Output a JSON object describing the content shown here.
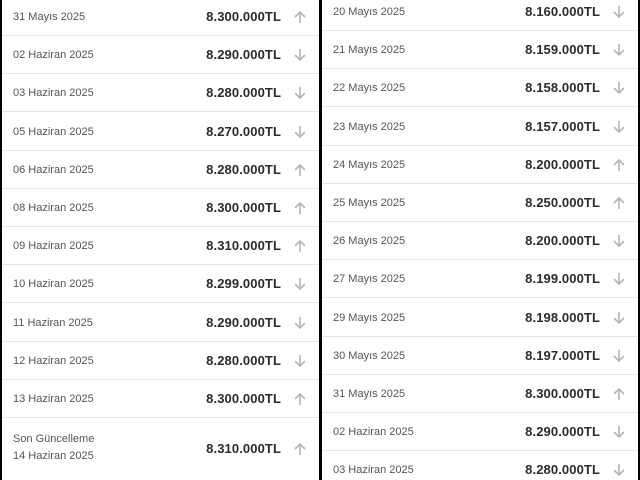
{
  "left": {
    "rows": [
      {
        "date": "31 Mayıs 2025",
        "price": "8.300.000TL",
        "dir": "up"
      },
      {
        "date": "02 Haziran 2025",
        "price": "8.290.000TL",
        "dir": "down"
      },
      {
        "date": "03 Haziran 2025",
        "price": "8.280.000TL",
        "dir": "down"
      },
      {
        "date": "05 Haziran 2025",
        "price": "8.270.000TL",
        "dir": "down"
      },
      {
        "date": "06 Haziran 2025",
        "price": "8.280.000TL",
        "dir": "up"
      },
      {
        "date": "08 Haziran 2025",
        "price": "8.300.000TL",
        "dir": "up"
      },
      {
        "date": "09 Haziran 2025",
        "price": "8.310.000TL",
        "dir": "up"
      },
      {
        "date": "10 Haziran 2025",
        "price": "8.299.000TL",
        "dir": "down"
      },
      {
        "date": "11 Haziran 2025",
        "price": "8.290.000TL",
        "dir": "down"
      },
      {
        "date": "12 Haziran 2025",
        "price": "8.280.000TL",
        "dir": "down"
      },
      {
        "date": "13 Haziran 2025",
        "price": "8.300.000TL",
        "dir": "up"
      }
    ],
    "last_update": {
      "label": "Son Güncelleme",
      "date": "14 Haziran 2025",
      "price": "8.310.000TL",
      "dir": "up"
    }
  },
  "right": {
    "rows": [
      {
        "date": "20 Mayıs 2025",
        "price": "8.160.000TL",
        "dir": "down"
      },
      {
        "date": "21 Mayıs 2025",
        "price": "8.159.000TL",
        "dir": "down"
      },
      {
        "date": "22 Mayıs 2025",
        "price": "8.158.000TL",
        "dir": "down"
      },
      {
        "date": "23 Mayıs 2025",
        "price": "8.157.000TL",
        "dir": "down"
      },
      {
        "date": "24 Mayıs 2025",
        "price": "8.200.000TL",
        "dir": "up"
      },
      {
        "date": "25 Mayıs 2025",
        "price": "8.250.000TL",
        "dir": "up"
      },
      {
        "date": "26 Mayıs 2025",
        "price": "8.200.000TL",
        "dir": "down"
      },
      {
        "date": "27 Mayıs 2025",
        "price": "8.199.000TL",
        "dir": "down"
      },
      {
        "date": "29 Mayıs 2025",
        "price": "8.198.000TL",
        "dir": "down"
      },
      {
        "date": "30 Mayıs 2025",
        "price": "8.197.000TL",
        "dir": "down"
      },
      {
        "date": "31 Mayıs 2025",
        "price": "8.300.000TL",
        "dir": "up"
      },
      {
        "date": "02 Haziran 2025",
        "price": "8.290.000TL",
        "dir": "down"
      },
      {
        "date": "03 Haziran 2025",
        "price": "8.280.000TL",
        "dir": "down"
      }
    ]
  },
  "colors": {
    "arrow": "#b5b5b5",
    "price": "#2b2b2b",
    "date": "#555555"
  }
}
